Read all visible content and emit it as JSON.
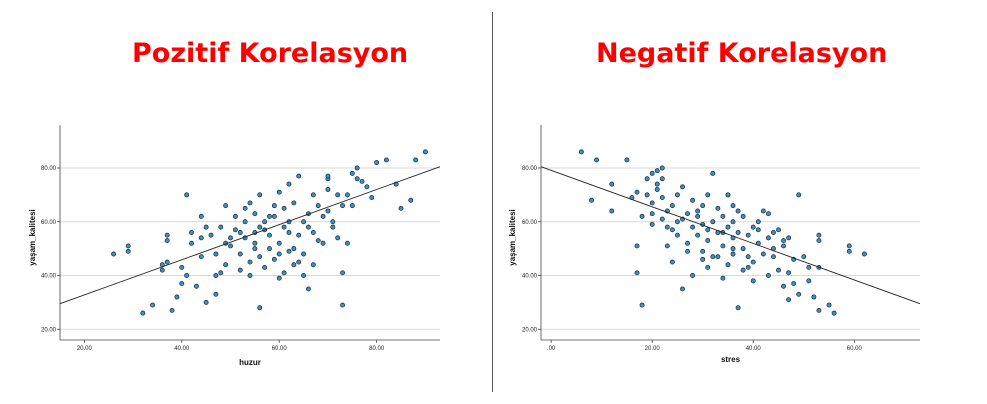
{
  "titles": {
    "left": "Pozitif Korelasyon",
    "right": "Negatif Korelasyon"
  },
  "colors": {
    "title": "#ff0000",
    "point_fill": "#3f8fc6",
    "point_stroke": "#1a2b3a",
    "fit_line": "#222222",
    "grid": "#cccccc"
  },
  "chart_data": [
    {
      "type": "scatter",
      "title": "",
      "xlabel": "huzur",
      "ylabel": "yaşam_kalitesi",
      "xlim": [
        15,
        93
      ],
      "ylim": [
        16,
        96
      ],
      "x_ticks": [
        20,
        40,
        60,
        80
      ],
      "x_tick_labels": [
        "20.00",
        "40.00",
        "60.00",
        "80.00"
      ],
      "y_ticks": [
        20,
        40,
        60,
        80
      ],
      "y_tick_labels": [
        "20.00",
        "40.00",
        "60.00",
        "80.00"
      ],
      "grid": "horizontal",
      "fit_line": {
        "x": [
          15,
          93
        ],
        "y": [
          29.5,
          80.5
        ]
      },
      "points": [
        [
          26,
          48
        ],
        [
          29,
          51
        ],
        [
          29,
          49
        ],
        [
          32,
          26
        ],
        [
          34,
          29
        ],
        [
          36,
          42
        ],
        [
          37,
          55
        ],
        [
          37,
          53
        ],
        [
          36,
          44
        ],
        [
          37,
          45
        ],
        [
          38,
          27
        ],
        [
          39,
          32
        ],
        [
          40,
          37
        ],
        [
          41,
          70
        ],
        [
          40,
          43
        ],
        [
          41,
          40
        ],
        [
          42,
          56
        ],
        [
          42,
          52
        ],
        [
          43,
          36
        ],
        [
          44,
          47
        ],
        [
          44,
          54
        ],
        [
          45,
          58
        ],
        [
          45,
          30
        ],
        [
          46,
          55
        ],
        [
          47,
          40
        ],
        [
          47,
          33
        ],
        [
          48,
          58
        ],
        [
          49,
          66
        ],
        [
          49,
          44
        ],
        [
          50,
          54
        ],
        [
          50,
          51
        ],
        [
          51,
          57
        ],
        [
          51,
          62
        ],
        [
          52,
          48
        ],
        [
          52,
          42
        ],
        [
          53,
          60
        ],
        [
          53,
          54
        ],
        [
          54,
          67
        ],
        [
          54,
          45
        ],
        [
          54,
          40
        ],
        [
          55,
          50
        ],
        [
          55,
          52
        ],
        [
          55,
          56
        ],
        [
          55,
          63
        ],
        [
          56,
          47
        ],
        [
          56,
          70
        ],
        [
          56,
          28
        ],
        [
          57,
          57
        ],
        [
          57,
          60
        ],
        [
          57,
          43
        ],
        [
          58,
          55
        ],
        [
          58,
          50
        ],
        [
          59,
          66
        ],
        [
          59,
          62
        ],
        [
          59,
          46
        ],
        [
          60,
          71
        ],
        [
          60,
          52
        ],
        [
          60,
          48
        ],
        [
          61,
          58
        ],
        [
          61,
          65
        ],
        [
          61,
          41
        ],
        [
          62,
          56
        ],
        [
          62,
          60
        ],
        [
          62,
          74
        ],
        [
          63,
          50
        ],
        [
          63,
          67
        ],
        [
          63,
          44
        ],
        [
          64,
          77
        ],
        [
          64,
          55
        ],
        [
          65,
          60
        ],
        [
          65,
          48
        ],
        [
          65,
          40
        ],
        [
          66,
          63
        ],
        [
          66,
          58
        ],
        [
          66,
          35
        ],
        [
          67,
          70
        ],
        [
          67,
          56
        ],
        [
          68,
          53
        ],
        [
          68,
          66
        ],
        [
          69,
          62
        ],
        [
          69,
          52
        ],
        [
          70,
          72
        ],
        [
          70,
          64
        ],
        [
          70,
          76
        ],
        [
          71,
          58
        ],
        [
          71,
          60
        ],
        [
          72,
          70
        ],
        [
          72,
          54
        ],
        [
          73,
          66
        ],
        [
          73,
          41
        ],
        [
          73,
          29
        ],
        [
          74,
          52
        ],
        [
          74,
          70
        ],
        [
          75,
          66
        ],
        [
          75,
          78
        ],
        [
          76,
          80
        ],
        [
          76,
          76
        ],
        [
          77,
          75
        ],
        [
          78,
          73
        ],
        [
          79,
          69
        ],
        [
          80,
          82
        ],
        [
          82,
          83
        ],
        [
          84,
          74
        ],
        [
          85,
          65
        ],
        [
          87,
          68
        ],
        [
          88,
          83
        ],
        [
          90,
          86
        ],
        [
          53,
          65
        ],
        [
          47,
          48
        ],
        [
          58,
          62
        ],
        [
          44,
          62
        ],
        [
          62,
          49
        ],
        [
          67,
          44
        ],
        [
          49,
          52
        ],
        [
          56,
          58
        ],
        [
          60,
          39
        ],
        [
          64,
          45
        ],
        [
          52,
          56
        ],
        [
          48,
          41
        ],
        [
          70,
          77
        ]
      ]
    },
    {
      "type": "scatter",
      "title": "",
      "xlabel": "stres",
      "ylabel": "yaşam_kalitesi",
      "xlim": [
        -2,
        73
      ],
      "ylim": [
        16,
        96
      ],
      "x_ticks": [
        0,
        20,
        40,
        60
      ],
      "x_tick_labels": [
        ".00",
        "20.00",
        "40.00",
        "60.00"
      ],
      "y_ticks": [
        20,
        40,
        60,
        80
      ],
      "y_tick_labels": [
        "20.00",
        "40.00",
        "60.00",
        "80.00"
      ],
      "grid": "horizontal",
      "fit_line": {
        "x": [
          -2,
          73
        ],
        "y": [
          80.5,
          29.5
        ]
      },
      "points": [
        [
          6,
          86
        ],
        [
          8,
          68
        ],
        [
          9,
          83
        ],
        [
          12,
          74
        ],
        [
          12,
          64
        ],
        [
          15,
          83
        ],
        [
          16,
          69
        ],
        [
          17,
          71
        ],
        [
          17,
          51
        ],
        [
          17,
          41
        ],
        [
          18,
          29
        ],
        [
          18,
          62
        ],
        [
          19,
          76
        ],
        [
          19,
          70
        ],
        [
          20,
          78
        ],
        [
          20,
          67
        ],
        [
          20,
          63
        ],
        [
          21,
          79
        ],
        [
          21,
          74
        ],
        [
          21,
          72
        ],
        [
          22,
          80
        ],
        [
          22,
          69
        ],
        [
          22,
          61
        ],
        [
          23,
          64
        ],
        [
          23,
          58
        ],
        [
          23,
          51
        ],
        [
          24,
          66
        ],
        [
          24,
          45
        ],
        [
          25,
          60
        ],
        [
          25,
          55
        ],
        [
          26,
          35
        ],
        [
          26,
          73
        ],
        [
          27,
          63
        ],
        [
          27,
          52
        ],
        [
          28,
          68
        ],
        [
          28,
          58
        ],
        [
          28,
          40
        ],
        [
          29,
          55
        ],
        [
          29,
          62
        ],
        [
          30,
          49
        ],
        [
          30,
          59
        ],
        [
          30,
          66
        ],
        [
          31,
          53
        ],
        [
          31,
          57
        ],
        [
          31,
          43
        ],
        [
          32,
          78
        ],
        [
          32,
          60
        ],
        [
          33,
          47
        ],
        [
          33,
          56
        ],
        [
          33,
          65
        ],
        [
          34,
          39
        ],
        [
          34,
          62
        ],
        [
          34,
          51
        ],
        [
          35,
          58
        ],
        [
          35,
          44
        ],
        [
          35,
          70
        ],
        [
          36,
          54
        ],
        [
          36,
          60
        ],
        [
          36,
          48
        ],
        [
          37,
          64
        ],
        [
          37,
          28
        ],
        [
          37,
          56
        ],
        [
          38,
          50
        ],
        [
          38,
          62
        ],
        [
          38,
          42
        ],
        [
          39,
          55
        ],
        [
          39,
          47
        ],
        [
          40,
          58
        ],
        [
          40,
          38
        ],
        [
          40,
          45
        ],
        [
          41,
          52
        ],
        [
          41,
          60
        ],
        [
          42,
          48
        ],
        [
          42,
          64
        ],
        [
          43,
          54
        ],
        [
          43,
          40
        ],
        [
          44,
          47
        ],
        [
          44,
          56
        ],
        [
          45,
          57
        ],
        [
          45,
          42
        ],
        [
          46,
          51
        ],
        [
          46,
          36
        ],
        [
          46,
          53
        ],
        [
          47,
          54
        ],
        [
          47,
          31
        ],
        [
          48,
          46
        ],
        [
          48,
          37
        ],
        [
          49,
          70
        ],
        [
          49,
          33
        ],
        [
          50,
          47
        ],
        [
          51,
          38
        ],
        [
          51,
          43
        ],
        [
          52,
          32
        ],
        [
          53,
          27
        ],
        [
          53,
          43
        ],
        [
          53,
          53
        ],
        [
          53,
          55
        ],
        [
          55,
          29
        ],
        [
          56,
          26
        ],
        [
          59,
          49
        ],
        [
          59,
          51
        ],
        [
          62,
          48
        ],
        [
          24,
          57
        ],
        [
          27,
          49
        ],
        [
          32,
          47
        ],
        [
          29,
          64
        ],
        [
          36,
          50
        ],
        [
          41,
          57
        ],
        [
          44,
          50
        ],
        [
          34,
          56
        ],
        [
          26,
          61
        ],
        [
          20,
          59
        ],
        [
          39,
          43
        ],
        [
          31,
          70
        ],
        [
          22,
          76
        ],
        [
          43,
          63
        ],
        [
          47,
          41
        ],
        [
          30,
          46
        ],
        [
          25,
          70
        ],
        [
          36,
          66
        ]
      ]
    }
  ]
}
